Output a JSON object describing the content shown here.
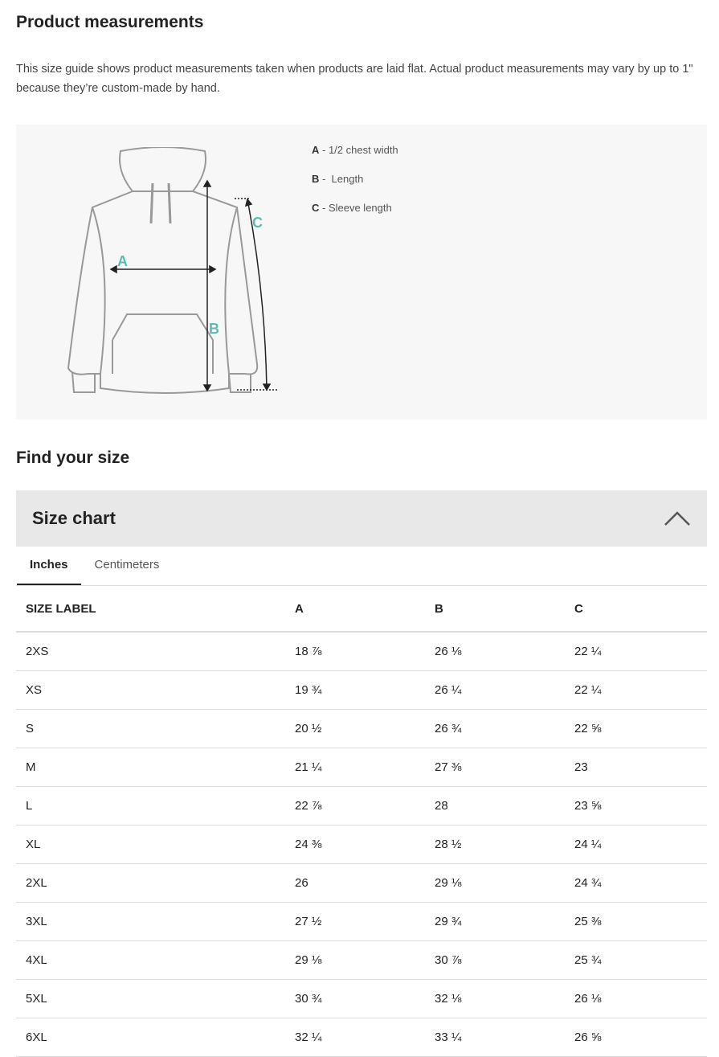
{
  "title": "Product measurements",
  "description": "This size guide shows product measurements taken when products are laid flat. Actual product measurements may vary by up to 1\" because they’re custom-made by hand.",
  "illustration": {
    "accent": "#5bbcb6",
    "labels": [
      "A",
      "B",
      "C"
    ]
  },
  "legend": [
    {
      "key": "A",
      "text": " - 1/2 chest width"
    },
    {
      "key": "B",
      "text": " -  Length"
    },
    {
      "key": "C",
      "text": " - Sleeve length"
    }
  ],
  "find_size": "Find your size",
  "accordion": {
    "title": "Size chart",
    "icon": "chevron-up-icon"
  },
  "tabs": [
    "Inches",
    "Centimeters"
  ],
  "active_tab": "Inches",
  "table": {
    "headers": [
      "SIZE LABEL",
      "A",
      "B",
      "C"
    ],
    "rows": [
      [
        "2XS",
        "18 ⅞",
        "26 ⅛",
        "22 ¼"
      ],
      [
        "XS",
        "19 ¾",
        "26 ¼",
        "22 ¼"
      ],
      [
        "S",
        "20 ½",
        "26 ¾",
        "22 ⅝"
      ],
      [
        "M",
        "21 ¼",
        "27 ⅜",
        "23"
      ],
      [
        "L",
        "22 ⅞",
        "28",
        "23 ⅝"
      ],
      [
        "XL",
        "24 ⅜",
        "28 ½",
        "24 ¼"
      ],
      [
        "2XL",
        "26",
        "29 ⅛",
        "24 ¾"
      ],
      [
        "3XL",
        "27 ½",
        "29 ¾",
        "25 ⅜"
      ],
      [
        "4XL",
        "29 ⅛",
        "30 ⅞",
        "25 ¾"
      ],
      [
        "5XL",
        "30 ¾",
        "32 ⅛",
        "26 ⅛"
      ],
      [
        "6XL",
        "32 ¼",
        "33 ¼",
        "26 ⅝"
      ]
    ]
  }
}
